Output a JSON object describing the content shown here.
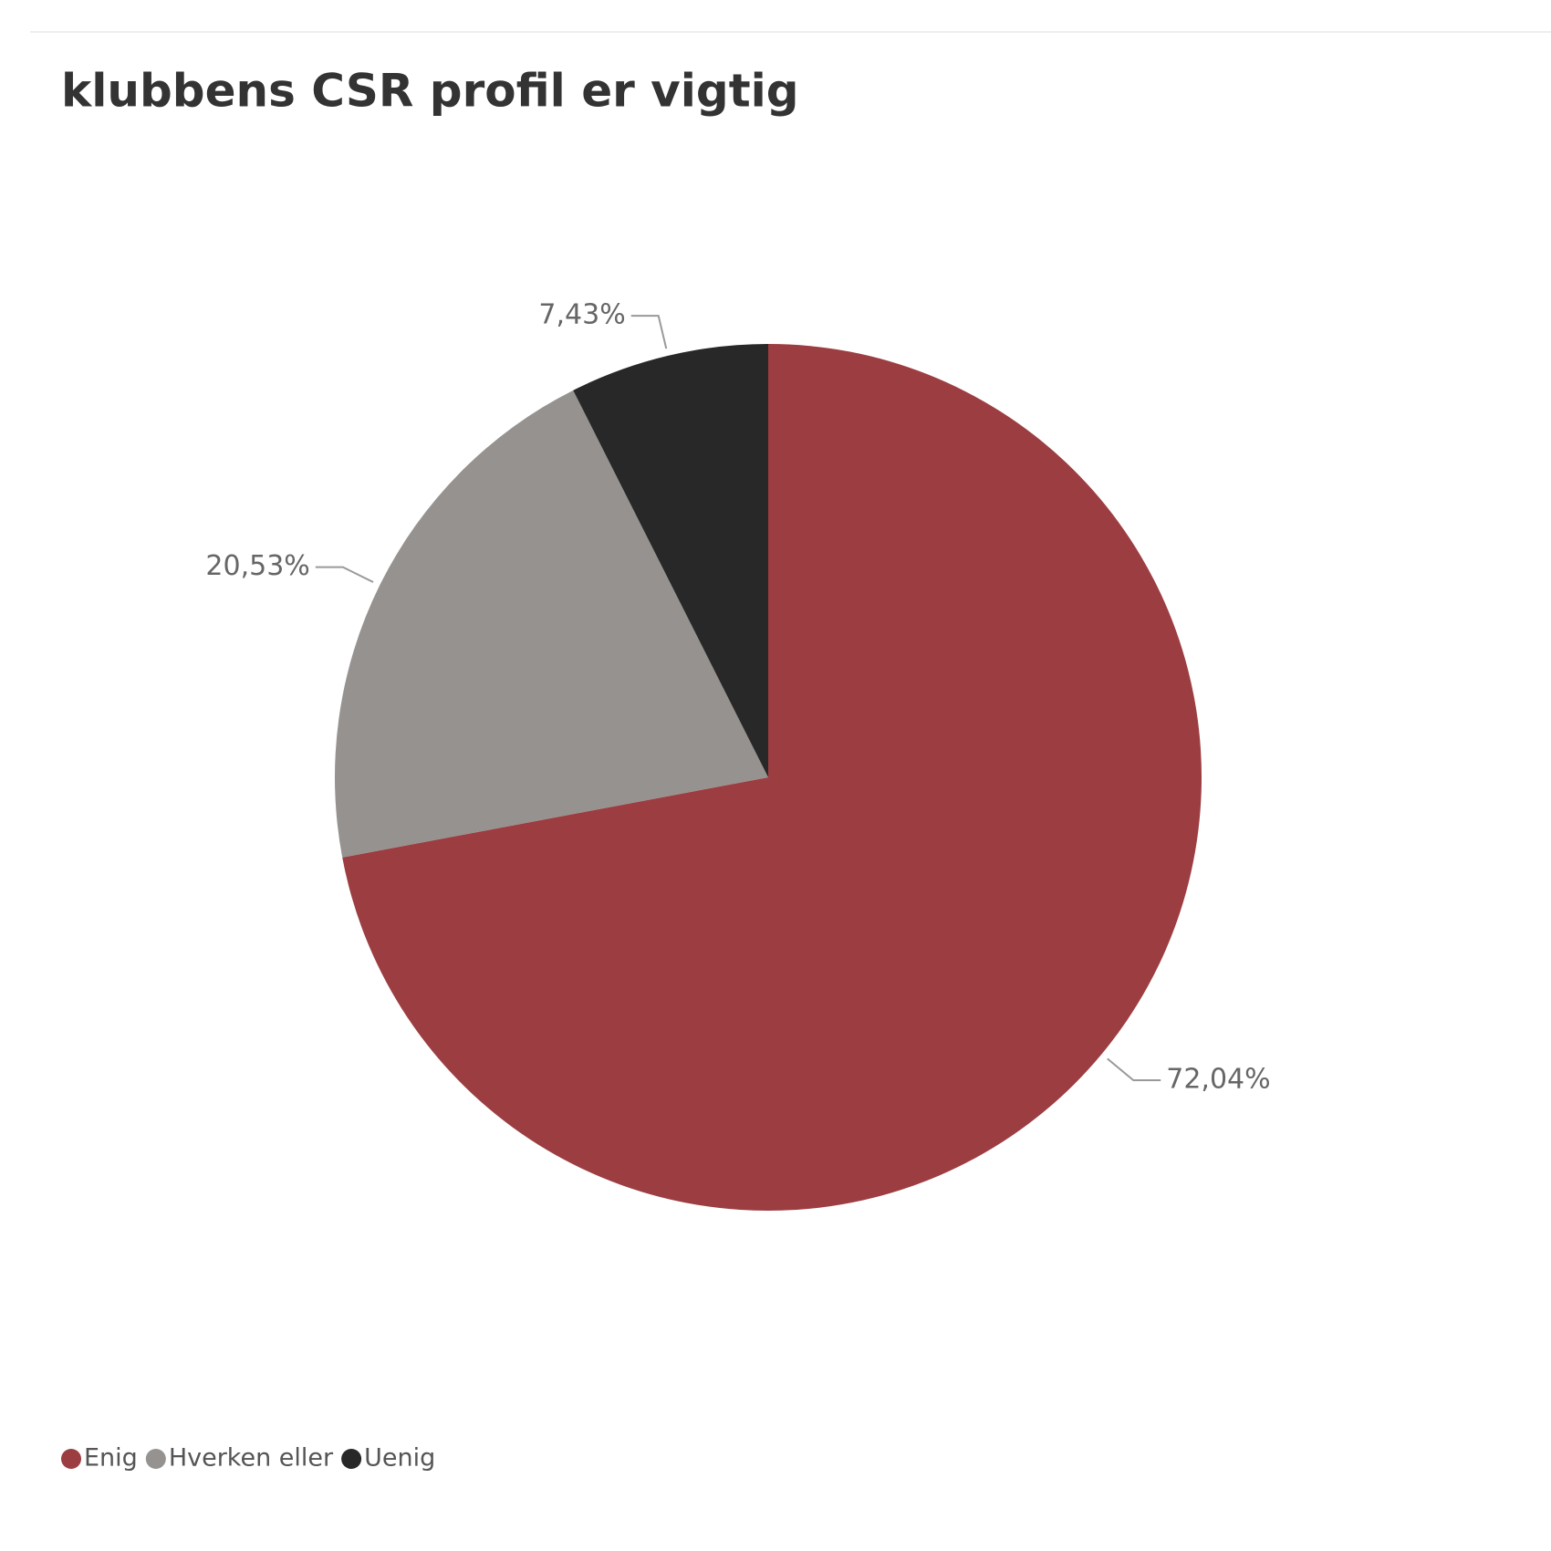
{
  "chart_data": {
    "type": "pie",
    "title": "klubbens CSR profil er vigtig",
    "categories": [
      "Enig",
      "Hverken eller",
      "Uenig"
    ],
    "values": [
      72.04,
      20.53,
      7.43
    ],
    "value_labels": [
      "72,04%",
      "20,53%",
      "7,43%"
    ],
    "colors": [
      "#9c3d41",
      "#95928f",
      "#282828"
    ],
    "legend": "bottom-left"
  }
}
